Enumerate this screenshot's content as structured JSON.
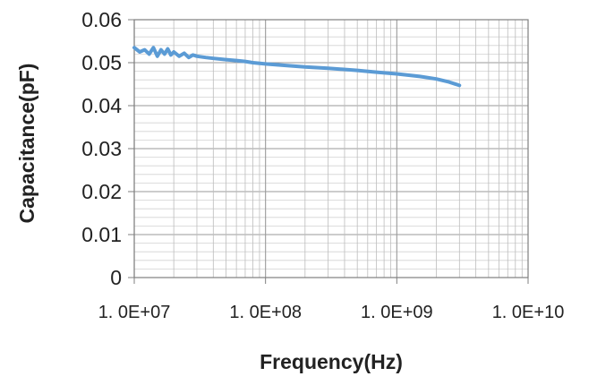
{
  "chart_data": {
    "type": "line",
    "title": "",
    "xlabel": "Frequency(Hz)",
    "ylabel": "Capacitance(pF)",
    "x_scale": "log",
    "xlim": [
      10000000.0,
      10000000000.0
    ],
    "ylim": [
      0,
      0.06
    ],
    "x_ticks": [
      {
        "value": 10000000.0,
        "label": "1. 0E+07"
      },
      {
        "value": 100000000.0,
        "label": "1. 0E+08"
      },
      {
        "value": 1000000000.0,
        "label": "1. 0E+09"
      },
      {
        "value": 10000000000.0,
        "label": "1. 0E+10"
      }
    ],
    "y_ticks": [
      {
        "value": 0,
        "label": "0"
      },
      {
        "value": 0.01,
        "label": "0.01"
      },
      {
        "value": 0.02,
        "label": "0.02"
      },
      {
        "value": 0.03,
        "label": "0.03"
      },
      {
        "value": 0.04,
        "label": "0.04"
      },
      {
        "value": 0.05,
        "label": "0.05"
      },
      {
        "value": 0.06,
        "label": "0.06"
      }
    ],
    "grid": true,
    "legend": "none",
    "series": [
      {
        "color": "#5b9bd5",
        "x": [
          10000000.0,
          11000000.0,
          12000000.0,
          13000000.0,
          14000000.0,
          15000000.0,
          16000000.0,
          17000000.0,
          18000000.0,
          19000000.0,
          20000000.0,
          22000000.0,
          24000000.0,
          26000000.0,
          28000000.0,
          30000000.0,
          35000000.0,
          40000000.0,
          50000000.0,
          60000000.0,
          70000000.0,
          80000000.0,
          100000000.0,
          150000000.0,
          200000000.0,
          300000000.0,
          500000000.0,
          700000000.0,
          1000000000.0,
          1500000000.0,
          2000000000.0,
          2500000000.0,
          3000000000.0
        ],
        "y": [
          0.0535,
          0.0525,
          0.053,
          0.052,
          0.0535,
          0.0515,
          0.053,
          0.052,
          0.0532,
          0.0518,
          0.0525,
          0.0515,
          0.0522,
          0.0512,
          0.0518,
          0.0515,
          0.0512,
          0.051,
          0.0507,
          0.0505,
          0.0503,
          0.05,
          0.0497,
          0.0493,
          0.049,
          0.0487,
          0.0482,
          0.0478,
          0.0474,
          0.0468,
          0.0462,
          0.0455,
          0.0447
        ]
      }
    ]
  }
}
